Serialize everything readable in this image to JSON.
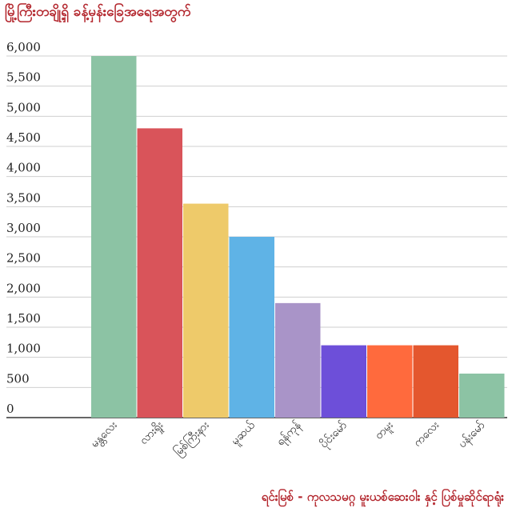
{
  "chart_data": {
    "type": "bar",
    "title": "မြို့ကြီးတချို့ရှိ ခန့်မှန်းခြေအရေအတွက်",
    "categories": [
      "မန္တလေး",
      "လားရှိုး",
      "မြစ်ကြီးနား",
      "မူဆယ်",
      "ရန်ကုန်",
      "ပိုင်းမော်",
      "တမူး",
      "ကလေး",
      "ပန်းမော်"
    ],
    "values": [
      6000,
      4800,
      3550,
      3000,
      1900,
      1200,
      1200,
      1200,
      730
    ],
    "colors": [
      "#8cc3a4",
      "#d9545a",
      "#eeca6a",
      "#5fb3e6",
      "#a994c8",
      "#6d4fd9",
      "#ff6a3d",
      "#e4572e",
      "#8cc3a4"
    ],
    "ylim": [
      0,
      6000
    ],
    "yticks": [
      0,
      500,
      1000,
      1500,
      2000,
      2500,
      3000,
      3500,
      4000,
      4500,
      5000,
      5500,
      6000
    ],
    "ytick_labels": [
      "0",
      "500",
      "1,000",
      "1,500",
      "2,000",
      "2,500",
      "3,000",
      "3,500",
      "4,000",
      "4,500",
      "5,000",
      "5,500",
      "6,000"
    ],
    "xlabel": "",
    "ylabel": "",
    "grid": true,
    "source": "ရင်းမြစ် - ကုလသမဂ္ဂ မူးယစ်ဆေးဝါး နှင့် ပြစ်မှုဆိုင်ရာရုံး"
  }
}
